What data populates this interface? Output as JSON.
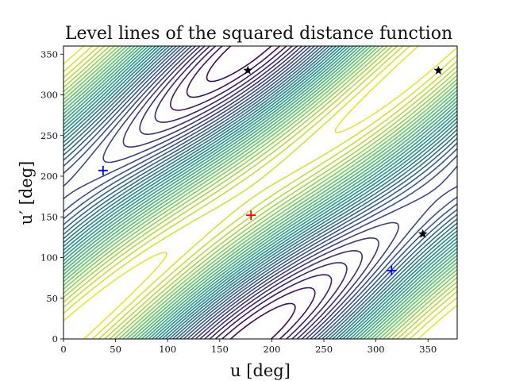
{
  "chart_data": {
    "type": "contour",
    "title": "Level lines of the squared distance function",
    "xlabel": "u [deg]",
    "ylabel": "u′ [deg]",
    "xlim": [
      0,
      378
    ],
    "ylim": [
      0,
      360
    ],
    "xticks": [
      0,
      50,
      100,
      150,
      200,
      250,
      300,
      350
    ],
    "yticks": [
      0,
      50,
      100,
      150,
      200,
      250,
      300,
      350
    ],
    "grid": false,
    "colormap": [
      "#440154",
      "#3b528b",
      "#21918c",
      "#5ec962",
      "#fde725"
    ],
    "contour_levels": 34,
    "markers": [
      {
        "kind": "plus",
        "color": "#ff0000",
        "x": 180,
        "y": 152
      },
      {
        "kind": "plus",
        "color": "#0000ff",
        "x": 38,
        "y": 207
      },
      {
        "kind": "plus",
        "color": "#0000ff",
        "x": 315,
        "y": 84
      },
      {
        "kind": "star",
        "color": "#000000",
        "x": 177,
        "y": 330
      },
      {
        "kind": "star",
        "color": "#000000",
        "x": 360,
        "y": 330
      },
      {
        "kind": "star",
        "color": "#000000",
        "x": 345,
        "y": 129
      }
    ]
  }
}
